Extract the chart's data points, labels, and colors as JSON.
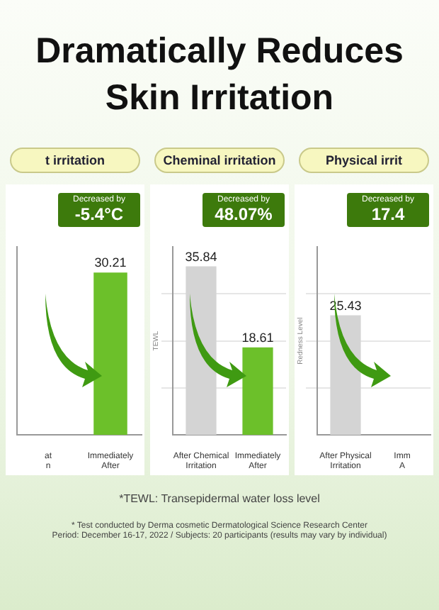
{
  "chart_data": [
    {
      "type": "bar",
      "title": "Dramatically Reduces Skin Irritation",
      "subtitle": "t irritation",
      "categories": [
        "at n",
        "Immediately After"
      ],
      "values": [
        null,
        30.21
      ],
      "colors": [
        "#d4d4d4",
        "#6cc02a"
      ],
      "tick_labels": "x",
      "data_labels": true,
      "annotations": [
        "Decreased by -5.4°C"
      ]
    },
    {
      "type": "bar",
      "title": "Cheminal irritation",
      "ylabel": "TEWL",
      "categories": [
        "After Chemical Irritation",
        "Immediately After"
      ],
      "values": [
        35.84,
        18.61
      ],
      "colors": [
        "#d4d4d4",
        "#6cc02a"
      ],
      "ylim": [
        0,
        40
      ],
      "yticks": [
        {
          "value": 10,
          "label": null
        },
        {
          "value": 20,
          "label": null
        },
        {
          "value": 30,
          "label": null
        }
      ],
      "grid": "y",
      "tick_labels": "x",
      "data_labels": true,
      "annotations": [
        "Decreased by 48.07%",
        "*TEWL: Transepidermal water loss level",
        "* Test conducted by Derma cosmetic Dermatological Science Research Center",
        "Period: December 16-17, 2022 / Subjects: 20 participants (results may vary by individual)"
      ]
    },
    {
      "type": "bar",
      "title": "Physical irrit",
      "ylabel": "Redness Level",
      "categories": [
        "After Physical Irritation",
        "Imm A"
      ],
      "values": [
        25.43,
        null
      ],
      "colors": [
        "#d4d4d4",
        "#6cc02a"
      ],
      "ylim": [
        0,
        40
      ],
      "yticks": [
        {
          "value": 10,
          "label": null
        },
        {
          "value": 20,
          "label": null
        },
        {
          "value": 30,
          "label": null
        }
      ],
      "grid": "y",
      "tick_labels": "x",
      "data_labels": true,
      "annotations": [
        "Decreased by 17.4"
      ]
    }
  ]
}
